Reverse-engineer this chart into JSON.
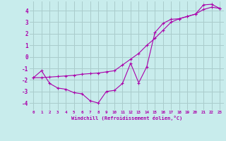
{
  "xlabel": "Windchill (Refroidissement éolien,°C)",
  "xlim": [
    -0.5,
    23.5
  ],
  "ylim": [
    -4.6,
    4.8
  ],
  "xticks": [
    0,
    1,
    2,
    3,
    4,
    5,
    6,
    7,
    8,
    9,
    10,
    11,
    12,
    13,
    14,
    15,
    16,
    17,
    18,
    19,
    20,
    21,
    22,
    23
  ],
  "yticks": [
    -4,
    -3,
    -2,
    -1,
    0,
    1,
    2,
    3,
    4
  ],
  "bg_color": "#c8ecec",
  "line_color": "#aa00aa",
  "grid_color": "#aacccc",
  "line1_x": [
    0,
    1,
    2,
    3,
    4,
    5,
    6,
    7,
    8,
    9,
    10,
    11,
    12,
    13,
    14,
    15,
    16,
    17,
    18,
    19,
    20,
    21,
    22,
    23
  ],
  "line1_y": [
    -1.8,
    -1.2,
    -2.3,
    -2.7,
    -2.8,
    -3.1,
    -3.2,
    -3.8,
    -4.0,
    -3.0,
    -2.9,
    -2.3,
    -0.55,
    -2.25,
    -0.85,
    2.1,
    2.9,
    3.25,
    3.3,
    3.5,
    3.7,
    4.5,
    4.55,
    4.2
  ],
  "line2_x": [
    0,
    1,
    2,
    3,
    4,
    5,
    6,
    7,
    8,
    9,
    10,
    11,
    12,
    13,
    14,
    15,
    16,
    17,
    18,
    19,
    20,
    21,
    22,
    23
  ],
  "line2_y": [
    -1.8,
    -1.8,
    -1.75,
    -1.7,
    -1.65,
    -1.6,
    -1.5,
    -1.45,
    -1.4,
    -1.3,
    -1.2,
    -0.7,
    -0.2,
    0.3,
    1.0,
    1.6,
    2.3,
    3.0,
    3.3,
    3.5,
    3.7,
    4.1,
    4.3,
    4.2
  ]
}
